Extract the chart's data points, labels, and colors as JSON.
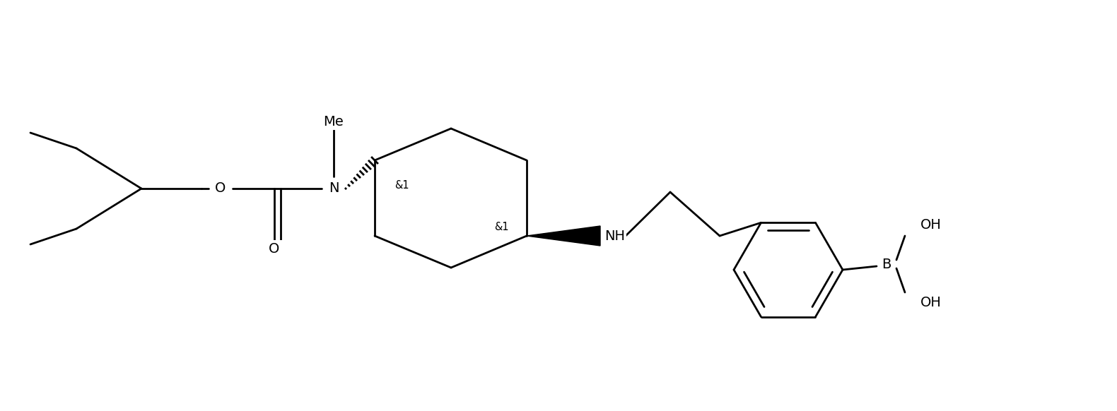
{
  "bg": "#ffffff",
  "lc": "#000000",
  "lw": 2.0,
  "fs": 14,
  "figw": 15.8,
  "figh": 5.82,
  "dpi": 100,
  "xlim": [
    0,
    15.8
  ],
  "ylim": [
    0,
    5.82
  ]
}
